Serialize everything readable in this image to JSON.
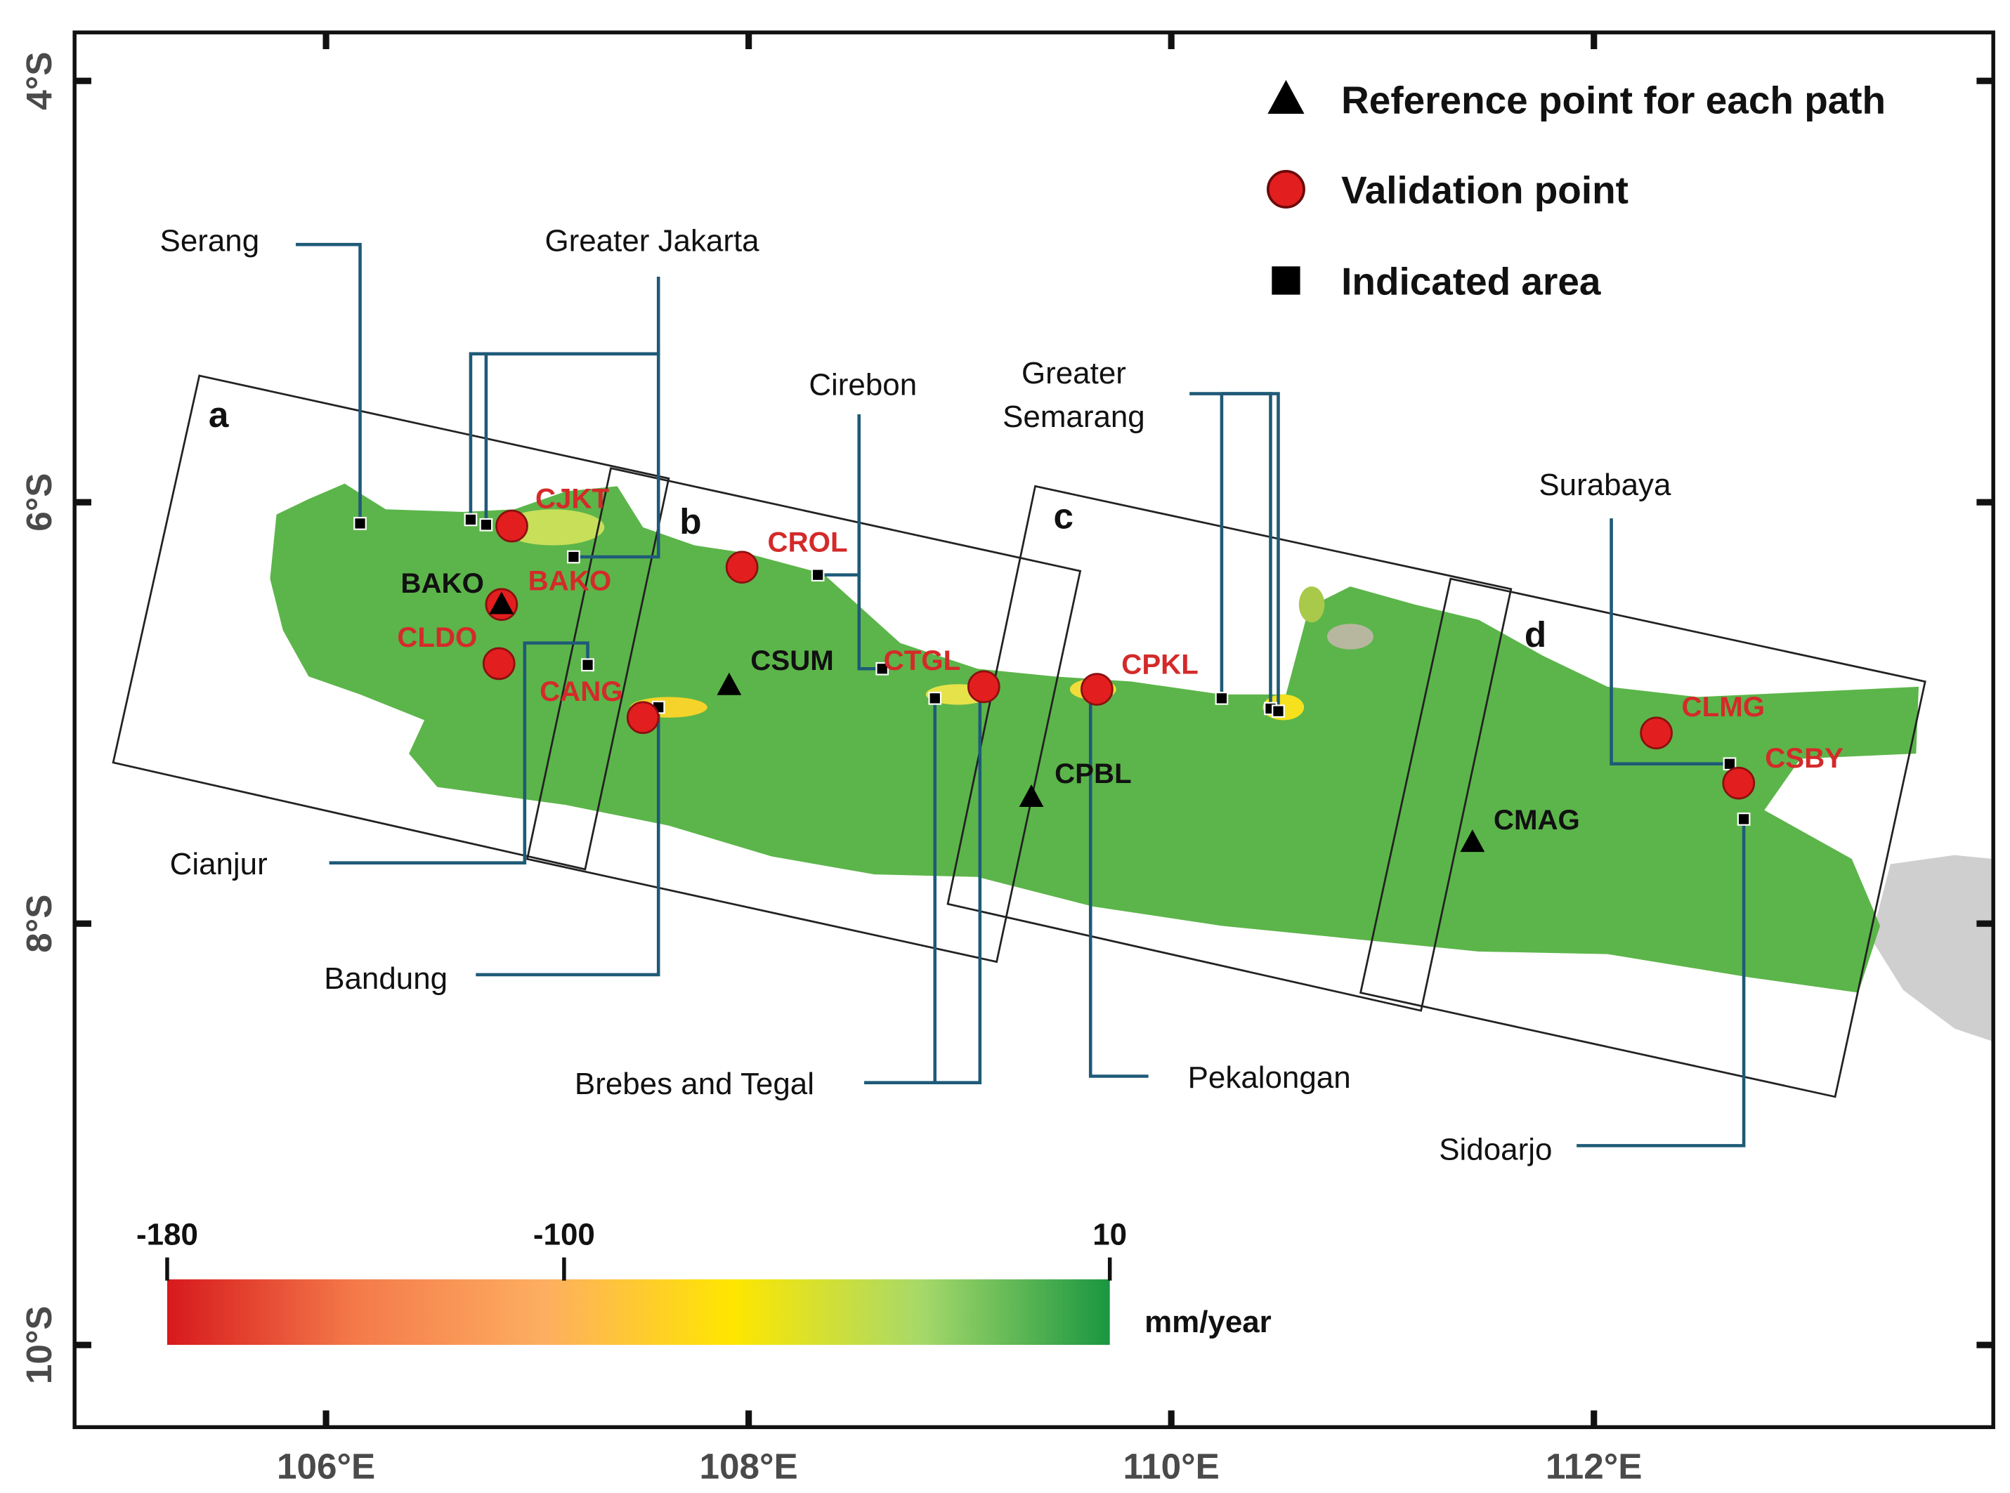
{
  "map": {
    "xlim": [
      104.81,
      113.89
    ],
    "ylim": [
      -10.39,
      -3.77
    ],
    "xticks": [
      {
        "value": 106,
        "label": "106°E"
      },
      {
        "value": 108,
        "label": "108°E"
      },
      {
        "value": 110,
        "label": "110°E"
      },
      {
        "value": 112,
        "label": "112°E"
      }
    ],
    "yticks": [
      {
        "value": -4,
        "label": "4°S"
      },
      {
        "value": -6,
        "label": "6°S"
      },
      {
        "value": -8,
        "label": "8°S"
      },
      {
        "value": -10,
        "label": "10°S"
      }
    ],
    "legend": [
      {
        "symbol": "triangle",
        "label": "Reference point for each path"
      },
      {
        "symbol": "circle",
        "label": "Validation point"
      },
      {
        "symbol": "square",
        "label": "Indicated area"
      }
    ],
    "paths": [
      "a",
      "b",
      "c",
      "d"
    ],
    "reference_points": [
      "BAKO",
      "CSUM",
      "CPBL",
      "CMAG"
    ],
    "validation_points": [
      "CJKT",
      "BAKO",
      "CLDO",
      "CANG",
      "CROL",
      "CTGL",
      "CPKL",
      "CLMG",
      "CSBY"
    ],
    "areas": [
      [
        "Serang"
      ],
      [
        "Greater Jakarta"
      ],
      [
        "Cirebon"
      ],
      [
        "Greater",
        "Semarang"
      ],
      [
        "Surabaya"
      ],
      [
        "Cianjur"
      ],
      [
        "Bandung"
      ],
      [
        "Brebes and Tegal"
      ],
      [
        "Pekalongan"
      ],
      [
        "Sidoarjo"
      ]
    ],
    "colorbar": {
      "range": [
        -180,
        10
      ],
      "ticks": [
        -180,
        -100,
        10
      ],
      "unit": "mm/year",
      "colors": [
        "#d7191c",
        "#f47a4a",
        "#fdae61",
        "#ffe600",
        "#a6d96a",
        "#1a9641"
      ]
    }
  }
}
